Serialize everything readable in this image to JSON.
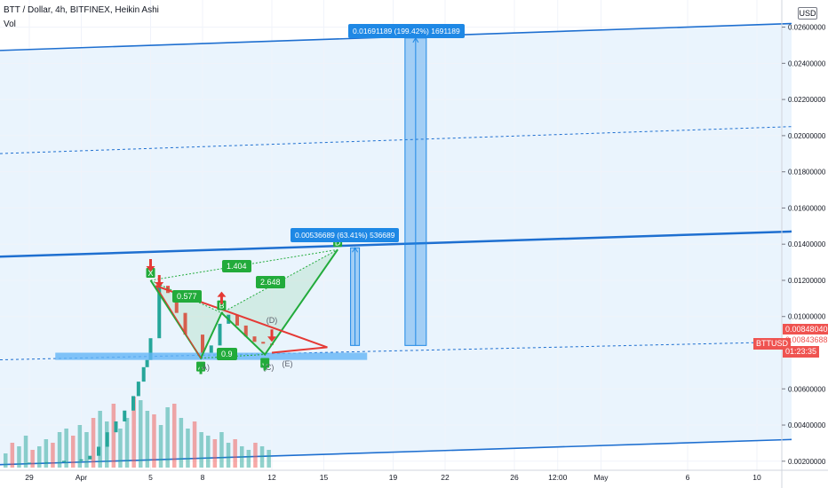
{
  "header": {
    "title": "BTT / Dollar, 4h, BITFINEX, Heikin Ashi",
    "indicator": "Vol"
  },
  "currency_badge": "USD",
  "price_tags": {
    "bid": "0.00848040",
    "last": "0.00843688",
    "symbol": "BTTUSD",
    "countdown": "01:23:35"
  },
  "measure_labels": {
    "small": "0.00536689 (63.41%) 536689",
    "large": "0.01691189 (199.42%) 1691189"
  },
  "pattern": {
    "points": [
      "X",
      "A",
      "B",
      "C",
      "D",
      "(D)",
      "(E)",
      "(C)",
      "(A)"
    ],
    "ratios": [
      "0.577",
      "1.404",
      "2.648",
      "0.9"
    ]
  },
  "colors": {
    "channel": "#1e6fd0",
    "pattern_green": "#22ab3b",
    "pattern_red": "#e53935",
    "candle_up": "#26a69a",
    "candle_down": "#ef5350",
    "price_tag": "#ef5350",
    "measure": "#1e88e5"
  },
  "chart_data": {
    "type": "line",
    "title": "BTT / Dollar, 4h, BITFINEX, Heikin Ashi",
    "xlabel": "",
    "ylabel": "",
    "ylim": [
      0.0015,
      0.0275
    ],
    "y_ticks": [
      "0.02600000",
      "0.02400000",
      "0.02200000",
      "0.02000000",
      "0.01800000",
      "0.01600000",
      "0.01400000",
      "0.01200000",
      "0.01000000",
      "0.00600000",
      "0.00400000",
      "0.00200000"
    ],
    "y_tick_values": [
      0.026,
      0.024,
      0.022,
      0.02,
      0.018,
      0.016,
      0.014,
      0.012,
      0.01,
      0.006,
      0.004,
      0.002
    ],
    "x_ticks": [
      {
        "label": "29",
        "t": -3
      },
      {
        "label": "Apr",
        "t": 0
      },
      {
        "label": "5",
        "t": 4
      },
      {
        "label": "8",
        "t": 7
      },
      {
        "label": "12",
        "t": 11
      },
      {
        "label": "15",
        "t": 14
      },
      {
        "label": "19",
        "t": 18
      },
      {
        "label": "22",
        "t": 21
      },
      {
        "label": "26",
        "t": 25
      },
      {
        "label": "12:00",
        "t": 27.5
      },
      {
        "label": "May",
        "t": 30
      },
      {
        "label": "6",
        "t": 35
      },
      {
        "label": "10",
        "t": 39
      }
    ],
    "grid": true,
    "price_close": [
      0.00189,
      0.00192,
      0.00195,
      0.00202,
      0.0021,
      0.0023,
      0.0028,
      0.0036,
      0.0042,
      0.0048,
      0.0056,
      0.0064,
      0.0072,
      0.0076,
      0.0088,
      0.0117,
      0.0113,
      0.0102,
      0.009,
      0.008,
      0.0084,
      0.0096,
      0.0101,
      0.0095,
      0.0089,
      0.0086,
      0.0085,
      0.00843
    ],
    "price_t": [
      -4,
      -3,
      -2,
      -1,
      0,
      0.5,
      1,
      1.5,
      2,
      2.5,
      3,
      3.3,
      3.6,
      3.8,
      4,
      4.5,
      5,
      5.5,
      6,
      7,
      7.5,
      8,
      8.5,
      9,
      9.5,
      10,
      10.5,
      11
    ],
    "volume": [
      0.2,
      0.35,
      0.3,
      0.45,
      0.25,
      0.3,
      0.4,
      0.35,
      0.5,
      0.55,
      0.45,
      0.6,
      0.5,
      0.7,
      0.8,
      0.65,
      0.9,
      0.55,
      0.7,
      1.0,
      0.95,
      0.8,
      0.75,
      0.6,
      0.85,
      0.9,
      0.7,
      0.55,
      0.65,
      0.5,
      0.45,
      0.4,
      0.5,
      0.35,
      0.4,
      0.3,
      0.25,
      0.35,
      0.3,
      0.25
    ],
    "channel_lines": [
      {
        "p1": {
          "t": -5,
          "v": 0.0247
        },
        "p2": {
          "t": 41,
          "v": 0.0262
        }
      },
      {
        "p1": {
          "t": -5,
          "v": 0.019
        },
        "p2": {
          "t": 41,
          "v": 0.0205
        },
        "dashed": true
      },
      {
        "p1": {
          "t": -5,
          "v": 0.0133
        },
        "p2": {
          "t": 41,
          "v": 0.0147
        }
      },
      {
        "p1": {
          "t": -5,
          "v": 0.0076
        },
        "p2": {
          "t": 41,
          "v": 0.0086
        },
        "dashed": true
      },
      {
        "p1": {
          "t": -5,
          "v": 0.0018
        },
        "p2": {
          "t": 41,
          "v": 0.0032
        }
      }
    ],
    "harmonic": [
      {
        "name": "X",
        "t": 4.0,
        "v": 0.012
      },
      {
        "name": "A",
        "t": 6.9,
        "v": 0.0077
      },
      {
        "name": "B",
        "t": 8.1,
        "v": 0.0102
      },
      {
        "name": "C",
        "t": 10.6,
        "v": 0.0079
      },
      {
        "name": "D",
        "t": 14.8,
        "v": 0.0137
      }
    ],
    "measures": [
      {
        "t": 15.8,
        "from": 0.0084,
        "to": 0.0138
      },
      {
        "t": 19.3,
        "from": 0.0084,
        "to": 0.0254
      }
    ]
  }
}
